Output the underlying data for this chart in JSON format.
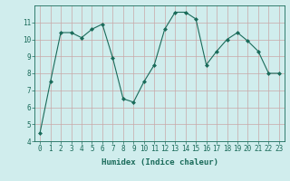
{
  "x": [
    0,
    1,
    2,
    3,
    4,
    5,
    6,
    7,
    8,
    9,
    10,
    11,
    12,
    13,
    14,
    15,
    16,
    17,
    18,
    19,
    20,
    21,
    22,
    23
  ],
  "y": [
    4.5,
    7.5,
    10.4,
    10.4,
    10.1,
    10.6,
    10.9,
    8.9,
    6.5,
    6.3,
    7.5,
    8.5,
    10.6,
    11.6,
    11.6,
    11.2,
    8.5,
    9.3,
    10.0,
    10.4,
    9.9,
    9.3,
    8.0,
    8.0
  ],
  "xlabel": "Humidex (Indice chaleur)",
  "ylim": [
    4,
    12
  ],
  "xlim": [
    -0.5,
    23.5
  ],
  "yticks": [
    4,
    5,
    6,
    7,
    8,
    9,
    10,
    11
  ],
  "xticks": [
    0,
    1,
    2,
    3,
    4,
    5,
    6,
    7,
    8,
    9,
    10,
    11,
    12,
    13,
    14,
    15,
    16,
    17,
    18,
    19,
    20,
    21,
    22,
    23
  ],
  "line_color": "#1a6b5a",
  "marker": "D",
  "marker_size": 2.0,
  "bg_color": "#d0eded",
  "grid_color": "#c8a8a8",
  "axis_color": "#1a6b5a",
  "font_color": "#1a6b5a",
  "font_family": "monospace",
  "tick_fontsize": 5.5,
  "xlabel_fontsize": 6.5
}
